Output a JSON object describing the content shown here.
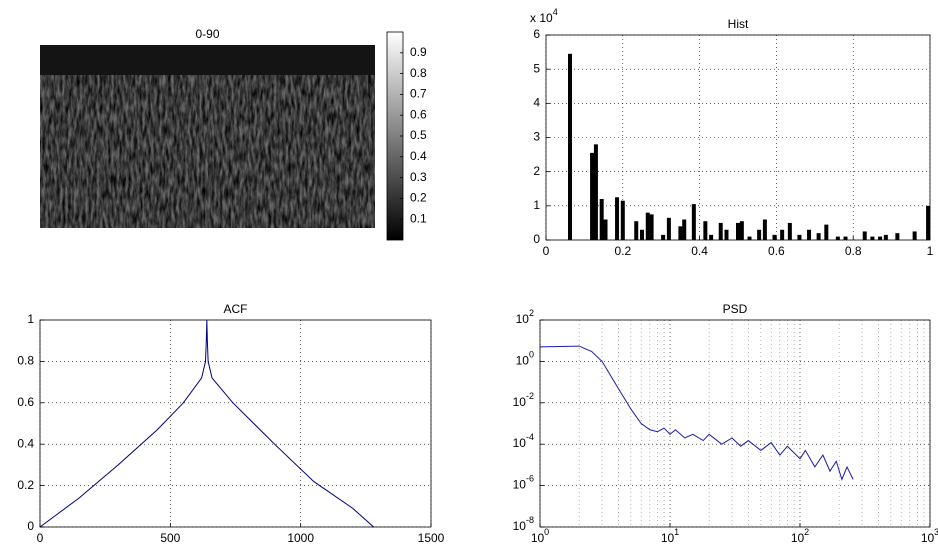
{
  "chart_data": [
    {
      "type": "image",
      "title": "0-90",
      "colorbar": {
        "ylim": [
          0,
          1
        ],
        "yticks": [
          0.1,
          0.2,
          0.3,
          0.4,
          0.5,
          0.6,
          0.7,
          0.8,
          0.9
        ]
      }
    },
    {
      "type": "bar",
      "title": "Hist",
      "y_multiplier": "x 10",
      "y_multiplier_exponent": "4",
      "x": [
        0.0625,
        0.12,
        0.13,
        0.145,
        0.155,
        0.185,
        0.2,
        0.235,
        0.25,
        0.265,
        0.275,
        0.305,
        0.32,
        0.35,
        0.36,
        0.385,
        0.415,
        0.43,
        0.455,
        0.47,
        0.5,
        0.51,
        0.53,
        0.555,
        0.57,
        0.595,
        0.615,
        0.635,
        0.66,
        0.685,
        0.71,
        0.73,
        0.76,
        0.78,
        0.83,
        0.85,
        0.87,
        0.885,
        0.915,
        0.96,
        0.995
      ],
      "values": [
        5.45,
        2.55,
        2.8,
        1.2,
        0.6,
        1.25,
        1.15,
        0.55,
        0.3,
        0.8,
        0.75,
        0.15,
        0.65,
        0.4,
        0.6,
        1.05,
        0.55,
        0.15,
        0.5,
        0.3,
        0.5,
        0.55,
        0.1,
        0.3,
        0.6,
        0.15,
        0.3,
        0.5,
        0.15,
        0.3,
        0.2,
        0.45,
        0.1,
        0.1,
        0.25,
        0.1,
        0.1,
        0.15,
        0.2,
        0.25,
        1.0
      ],
      "color": "#000000",
      "xlim": [
        0,
        1
      ],
      "xticks": [
        0,
        0.2,
        0.4,
        0.6,
        0.8,
        1
      ],
      "ylim": [
        0,
        6
      ],
      "yticks": [
        0,
        1,
        2,
        3,
        4,
        5,
        6
      ],
      "grid": true
    },
    {
      "type": "line",
      "title": "ACF",
      "x": [
        0,
        150,
        300,
        450,
        550,
        620,
        635,
        638,
        640,
        642,
        645,
        660,
        740,
        900,
        1050,
        1200,
        1280
      ],
      "values": [
        0,
        0.14,
        0.3,
        0.47,
        0.6,
        0.72,
        0.8,
        0.9,
        1,
        0.9,
        0.8,
        0.72,
        0.6,
        0.4,
        0.22,
        0.09,
        0
      ],
      "color": "#000080",
      "xlim": [
        0,
        1500
      ],
      "xticks": [
        0,
        500,
        1000,
        1500
      ],
      "ylim": [
        0,
        1
      ],
      "yticks": [
        0,
        0.2,
        0.4,
        0.6,
        0.8,
        1
      ],
      "grid": true
    },
    {
      "type": "line",
      "title": "PSD",
      "xscale": "log",
      "yscale": "log",
      "x": [
        1,
        2,
        2.5,
        3,
        4,
        5,
        6,
        7,
        8,
        9,
        10,
        11,
        13,
        15,
        18,
        20,
        25,
        30,
        35,
        40,
        50,
        60,
        70,
        80,
        100,
        110,
        130,
        150,
        170,
        190,
        210,
        230,
        256
      ],
      "values": [
        5,
        5.5,
        3,
        1,
        0.05,
        0.005,
        0.001,
        0.0005,
        0.0004,
        0.0006,
        0.0003,
        0.0005,
        0.0002,
        0.0003,
        0.00015,
        0.0003,
        0.0001,
        0.0002,
        8e-05,
        0.00015,
        5e-05,
        0.00012,
        3e-05,
        8e-05,
        2e-05,
        5e-05,
        8e-06,
        3e-05,
        5e-06,
        1.5e-05,
        2e-06,
        8e-06,
        2e-06
      ],
      "color": "#1a1aa8",
      "xlim": [
        1,
        1000
      ],
      "xticks": [
        {
          "value": 1,
          "label": "10",
          "exp": "0"
        },
        {
          "value": 10,
          "label": "10",
          "exp": "1"
        },
        {
          "value": 100,
          "label": "10",
          "exp": "2"
        },
        {
          "value": 1000,
          "label": "10",
          "exp": "3"
        }
      ],
      "ylim": [
        1e-08,
        100
      ],
      "yticks": [
        {
          "value": 1e-08,
          "label": "10",
          "exp": "-8"
        },
        {
          "value": 1e-06,
          "label": "10",
          "exp": "-6"
        },
        {
          "value": 0.0001,
          "label": "10",
          "exp": "-4"
        },
        {
          "value": 0.01,
          "label": "10",
          "exp": "-2"
        },
        {
          "value": 1,
          "label": "10",
          "exp": "0"
        },
        {
          "value": 100,
          "label": "10",
          "exp": "2"
        }
      ],
      "grid": true
    }
  ]
}
